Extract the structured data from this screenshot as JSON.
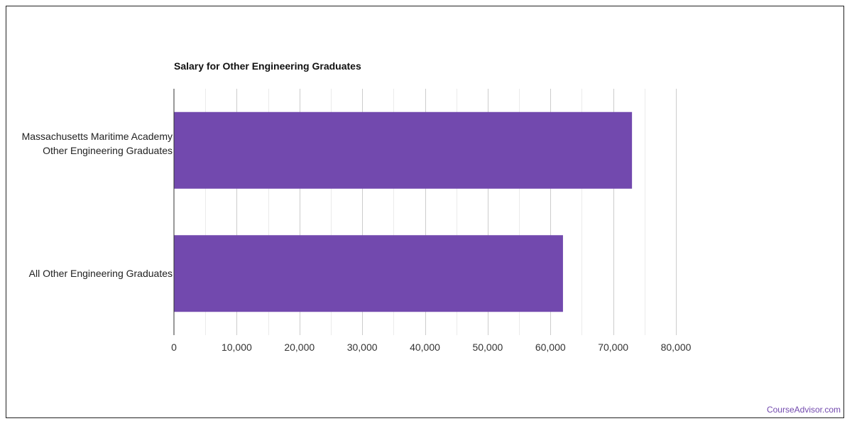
{
  "branding": {
    "watermark": "CourseAdvisor.com",
    "accent_color": "#7249ae"
  },
  "chart_data": {
    "type": "bar",
    "orientation": "horizontal",
    "title": "Salary for Other Engineering Graduates",
    "categories": [
      "Massachusetts Maritime Academy Other Engineering Graduates",
      "All Other Engineering Graduates"
    ],
    "values": [
      73000,
      62000
    ],
    "xlim": [
      0,
      80000
    ],
    "xticks": [
      0,
      10000,
      20000,
      30000,
      40000,
      50000,
      60000,
      70000,
      80000
    ],
    "xtick_labels": [
      "0",
      "10,000",
      "20,000",
      "30,000",
      "40,000",
      "50,000",
      "60,000",
      "70,000",
      "80,000"
    ],
    "grid": true,
    "bar_color": "#7249ae",
    "legend": "none"
  }
}
